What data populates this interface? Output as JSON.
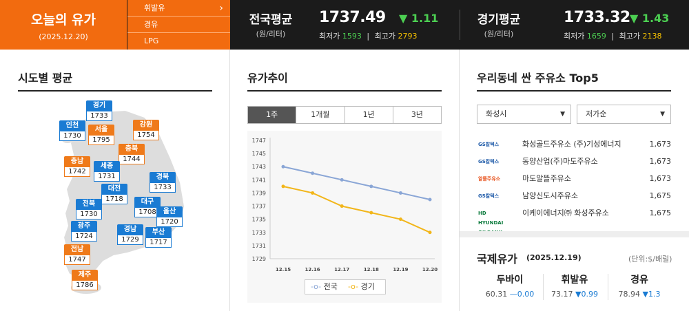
{
  "header": {
    "today_title": "오늘의 유가",
    "today_date": "(2025.12.20)",
    "fuel_tabs": [
      {
        "label": "휘발유",
        "active": true
      },
      {
        "label": "경유",
        "active": false
      },
      {
        "label": "LPG",
        "active": false
      }
    ],
    "national": {
      "label": "전국평균",
      "unit": "(원/리터)",
      "price": "1737.49",
      "change": "▼ 1.11",
      "min_label": "최저가",
      "min": "1593",
      "sep": "|",
      "max_label": "최고가",
      "max": "2793"
    },
    "gyeonggi": {
      "label": "경기평균",
      "unit": "(원/리터)",
      "price": "1733.32",
      "change": "▼ 1.43",
      "min_label": "최저가",
      "min": "1659",
      "sep": "|",
      "max_label": "최고가",
      "max": "2138"
    }
  },
  "regions": {
    "title": "시도별 평균",
    "items": [
      {
        "name": "경기",
        "value": "1733",
        "color": "blue"
      },
      {
        "name": "인천",
        "value": "1730",
        "color": "blue"
      },
      {
        "name": "서울",
        "value": "1795",
        "color": "orange"
      },
      {
        "name": "강원",
        "value": "1754",
        "color": "orange"
      },
      {
        "name": "충북",
        "value": "1744",
        "color": "orange"
      },
      {
        "name": "충남",
        "value": "1742",
        "color": "orange"
      },
      {
        "name": "세종",
        "value": "1731",
        "color": "blue"
      },
      {
        "name": "경북",
        "value": "1733",
        "color": "blue"
      },
      {
        "name": "대전",
        "value": "1718",
        "color": "blue"
      },
      {
        "name": "전북",
        "value": "1730",
        "color": "blue"
      },
      {
        "name": "대구",
        "value": "1708",
        "color": "blue"
      },
      {
        "name": "울산",
        "value": "1720",
        "color": "blue"
      },
      {
        "name": "광주",
        "value": "1724",
        "color": "blue"
      },
      {
        "name": "경남",
        "value": "1729",
        "color": "blue"
      },
      {
        "name": "부산",
        "value": "1717",
        "color": "blue"
      },
      {
        "name": "전남",
        "value": "1747",
        "color": "orange"
      },
      {
        "name": "제주",
        "value": "1786",
        "color": "orange"
      }
    ]
  },
  "trend": {
    "title": "유가추이",
    "tabs": [
      "1주",
      "1개월",
      "1년",
      "3년"
    ],
    "active_tab": 0
  },
  "chart_data": {
    "type": "line",
    "categories": [
      "12.15",
      "12.16",
      "12.17",
      "12.18",
      "12.19",
      "12.20"
    ],
    "series": [
      {
        "name": "전국",
        "color": "#8aa6d6",
        "values": [
          1743,
          1742,
          1741,
          1740,
          1739,
          1738
        ]
      },
      {
        "name": "경기",
        "color": "#f2b61a",
        "values": [
          1740,
          1739,
          1737,
          1736,
          1735,
          1733
        ]
      }
    ],
    "ylim": [
      1729,
      1747
    ],
    "yticks": [
      "1747",
      "1745",
      "1743",
      "1741",
      "1739",
      "1737",
      "1735",
      "1733",
      "1731",
      "1729"
    ],
    "grid": false,
    "legend": "bottom"
  },
  "stations": {
    "title": "우리동네 싼 주유소 Top5",
    "city_select": "화성시",
    "sort_select": "저가순",
    "items": [
      {
        "brand": "GS칼텍스",
        "brand_icon": "gs-caltex-logo",
        "name": "화성골드주유소 (주)기성에너지",
        "price": "1,673"
      },
      {
        "brand": "GS칼텍스",
        "brand_icon": "gs-caltex-logo",
        "name": "동양산업(주)마도주유소",
        "price": "1,673"
      },
      {
        "brand": "알뜰주유소",
        "brand_icon": "altteul-logo",
        "name": "마도알뜰주유소",
        "price": "1,673"
      },
      {
        "brand": "GS칼텍스",
        "brand_icon": "gs-caltex-logo",
        "name": "남양신도시주유소",
        "price": "1,675"
      },
      {
        "brand": "HD HYUNDAI OILBANK",
        "brand_icon": "hd-oilbank-logo",
        "name": "이케이에너지㈜ 화성주유소",
        "price": "1,675"
      }
    ]
  },
  "international": {
    "title": "국제유가",
    "date": "(2025.12.19)",
    "unit": "(단위:$/배럴)",
    "items": [
      {
        "name": "두바이",
        "value": "60.31",
        "change": "—0.00"
      },
      {
        "name": "휘발유",
        "value": "73.17",
        "change": "▼0.99"
      },
      {
        "name": "경유",
        "value": "78.94",
        "change": "▼1.3"
      }
    ]
  }
}
